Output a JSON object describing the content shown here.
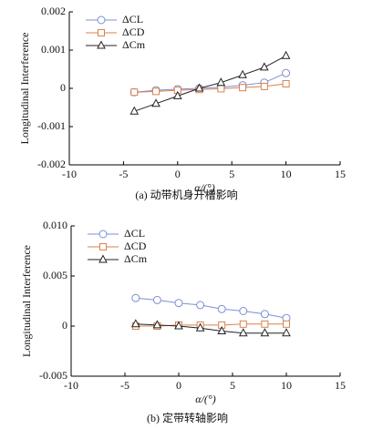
{
  "chart_data": [
    {
      "type": "line",
      "caption": "(a) 动带机身开槽影响",
      "xlabel": "α/(°)",
      "ylabel": "Longitudinal Interference",
      "x": [
        -4,
        -2,
        0,
        2,
        4,
        6,
        8,
        10
      ],
      "series": [
        {
          "name": "ΔCL",
          "color": "#7b8fd4",
          "marker": "circle",
          "values": [
            -0.0001,
            -5e-05,
            -2e-05,
            0,
            3e-05,
            8e-05,
            0.00015,
            0.0004
          ]
        },
        {
          "name": "ΔCD",
          "color": "#d9824f",
          "marker": "square",
          "values": [
            -0.0001,
            -8e-05,
            -5e-05,
            -3e-05,
            -1e-05,
            2e-05,
            5e-05,
            0.00012
          ]
        },
        {
          "name": "ΔCm",
          "color": "#222222",
          "marker": "triangle",
          "values": [
            -0.0006,
            -0.0004,
            -0.0002,
            0,
            0.00015,
            0.00035,
            0.00055,
            0.00085
          ]
        }
      ],
      "xlim": [
        -10,
        15
      ],
      "xticks": [
        -10,
        -5,
        0,
        5,
        10,
        15
      ],
      "ylim": [
        -0.002,
        0.002
      ],
      "yticks": [
        -0.002,
        -0.001,
        0,
        0.001,
        0.002
      ],
      "legend": "upper left"
    },
    {
      "type": "line",
      "caption": "(b) 定带转轴影响",
      "xlabel": "α/(°)",
      "ylabel": "Longitudinal Interference",
      "x": [
        -4,
        -2,
        0,
        2,
        4,
        6,
        8,
        10
      ],
      "series": [
        {
          "name": "ΔCL",
          "color": "#7b8fd4",
          "marker": "circle",
          "values": [
            0.0028,
            0.0026,
            0.0023,
            0.0021,
            0.0017,
            0.0015,
            0.0012,
            0.0008
          ]
        },
        {
          "name": "ΔCD",
          "color": "#d9824f",
          "marker": "square",
          "values": [
            0,
            0,
            0.0001,
            0.0001,
            0.0001,
            0.0002,
            0.0002,
            0.0002
          ]
        },
        {
          "name": "ΔCm",
          "color": "#222222",
          "marker": "triangle",
          "values": [
            0.0002,
            0.0001,
            0,
            -0.0002,
            -0.0005,
            -0.0007,
            -0.0007,
            -0.0007
          ]
        }
      ],
      "xlim": [
        -10,
        15
      ],
      "xticks": [
        -10,
        -5,
        0,
        5,
        10,
        15
      ],
      "ylim": [
        -0.005,
        0.01
      ],
      "yticks": [
        -0.005,
        0,
        0.005,
        {
          "value": 0.01,
          "label": "0.010"
        }
      ],
      "legend": "upper left"
    }
  ]
}
